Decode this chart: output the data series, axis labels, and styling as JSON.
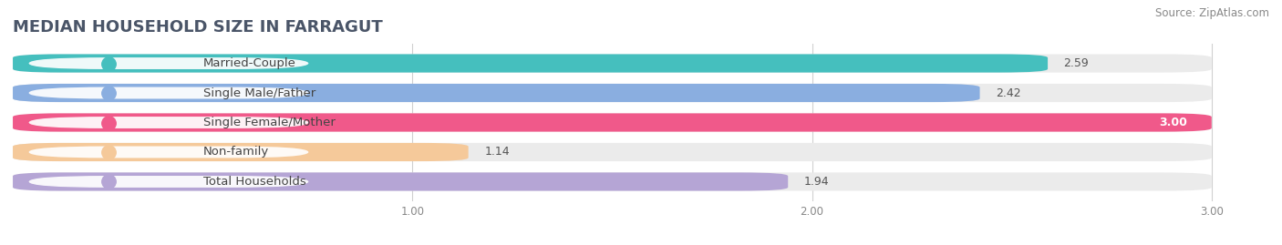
{
  "title": "MEDIAN HOUSEHOLD SIZE IN FARRAGUT",
  "source": "Source: ZipAtlas.com",
  "categories": [
    "Married-Couple",
    "Single Male/Father",
    "Single Female/Mother",
    "Non-family",
    "Total Households"
  ],
  "values": [
    2.59,
    2.42,
    3.0,
    1.14,
    1.94
  ],
  "colors": [
    "#45bfbe",
    "#8aaee0",
    "#f0598a",
    "#f5c99a",
    "#b5a5d5"
  ],
  "xmin": 0.0,
  "xmax": 3.0,
  "xticks": [
    1.0,
    2.0,
    3.0
  ],
  "bar_height": 0.62,
  "background_color": "#ffffff",
  "bar_bg_color": "#ebebeb",
  "label_fontsize": 9.5,
  "value_fontsize": 9,
  "title_fontsize": 13,
  "source_fontsize": 8.5
}
